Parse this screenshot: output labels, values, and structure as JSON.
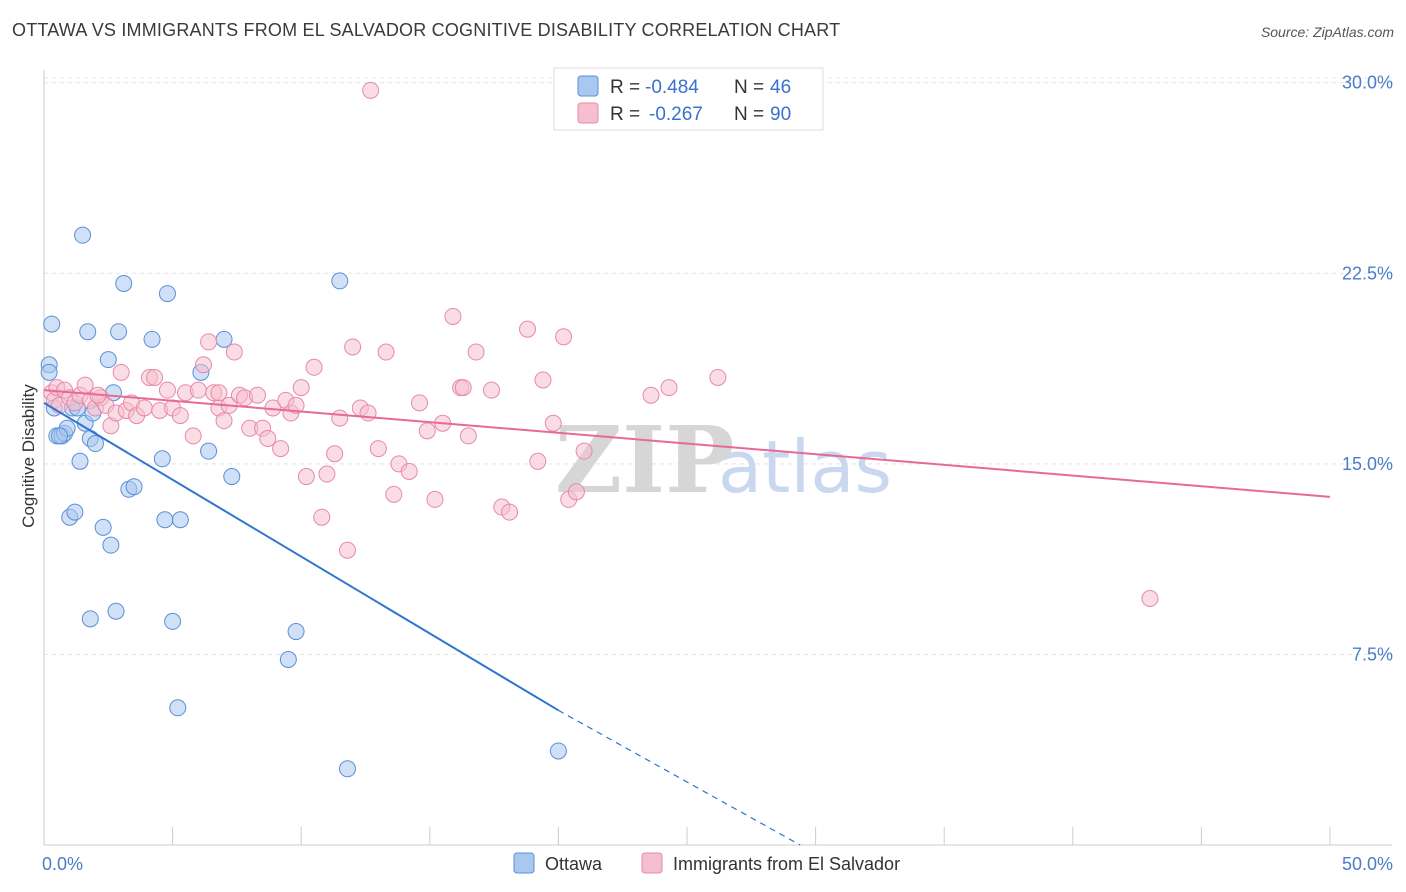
{
  "title": "OTTAWA VS IMMIGRANTS FROM EL SALVADOR COGNITIVE DISABILITY CORRELATION CHART",
  "source": "Source: ZipAtlas.com",
  "watermark": {
    "zip": "ZIP",
    "atlas": "atlas"
  },
  "legend_top": {
    "rows": [
      {
        "r_label": "R = ",
        "r_value": "-0.484",
        "n_label": "N = ",
        "n_value": "46",
        "color": "#a9c8f0",
        "stroke": "#5b8fd6"
      },
      {
        "r_label": "R = ",
        "r_value": "-0.267",
        "n_label": "N = ",
        "n_value": "90",
        "color": "#f6bfd0",
        "stroke": "#e78aa8"
      }
    ]
  },
  "legend_bottom": [
    {
      "label": "Ottawa",
      "color": "#a9c8f0",
      "stroke": "#5b8fd6"
    },
    {
      "label": "Immigrants from El Salvador",
      "color": "#f6bfd0",
      "stroke": "#e78aa8"
    }
  ],
  "chart_data": {
    "type": "scatter",
    "title": "OTTAWA VS IMMIGRANTS FROM EL SALVADOR COGNITIVE DISABILITY CORRELATION CHART",
    "xlabel": "",
    "ylabel": "Cognitive Disability",
    "xlim": [
      0,
      50
    ],
    "ylim": [
      0,
      30.5
    ],
    "x_tick_labels": [
      "0.0%",
      "50.0%"
    ],
    "y_ticks": [
      7.5,
      15.0,
      22.5,
      30.0
    ],
    "y_tick_labels": [
      "7.5%",
      "15.0%",
      "22.5%",
      "30.0%"
    ],
    "grid": true,
    "series": [
      {
        "name": "Ottawa",
        "color": "#a9c8f0",
        "stroke": "#5b8fd6",
        "line_color": "#2f74d0",
        "trend": {
          "x0": 0,
          "y0": 17.4,
          "x1": 20,
          "y1": 5.3,
          "dash_to_x": 29.4,
          "dash_to_y": 0
        },
        "points": [
          [
            0.2,
            18.9
          ],
          [
            0.2,
            18.6
          ],
          [
            0.3,
            20.5
          ],
          [
            0.4,
            17.2
          ],
          [
            0.5,
            16.1
          ],
          [
            0.7,
            16.1
          ],
          [
            0.8,
            16.2
          ],
          [
            0.9,
            16.4
          ],
          [
            1.0,
            12.9
          ],
          [
            1.1,
            17.2
          ],
          [
            1.2,
            13.1
          ],
          [
            1.4,
            15.1
          ],
          [
            1.5,
            24.0
          ],
          [
            1.6,
            16.6
          ],
          [
            1.7,
            20.2
          ],
          [
            1.8,
            8.9
          ],
          [
            1.8,
            16.0
          ],
          [
            1.9,
            17.0
          ],
          [
            2.0,
            15.8
          ],
          [
            2.3,
            12.5
          ],
          [
            2.5,
            19.1
          ],
          [
            2.6,
            11.8
          ],
          [
            2.7,
            17.8
          ],
          [
            2.8,
            9.2
          ],
          [
            2.9,
            20.2
          ],
          [
            3.1,
            22.1
          ],
          [
            3.3,
            14.0
          ],
          [
            3.5,
            14.1
          ],
          [
            4.2,
            19.9
          ],
          [
            4.6,
            15.2
          ],
          [
            4.7,
            12.8
          ],
          [
            4.8,
            21.7
          ],
          [
            5.0,
            8.8
          ],
          [
            5.2,
            5.4
          ],
          [
            5.3,
            12.8
          ],
          [
            6.1,
            18.6
          ],
          [
            6.4,
            15.5
          ],
          [
            7.0,
            19.9
          ],
          [
            7.3,
            14.5
          ],
          [
            9.5,
            7.3
          ],
          [
            9.8,
            8.4
          ],
          [
            11.5,
            22.2
          ],
          [
            11.8,
            3.0
          ],
          [
            20.0,
            3.7
          ],
          [
            0.6,
            16.1
          ],
          [
            1.3,
            17.2
          ]
        ]
      },
      {
        "name": "Immigrants from El Salvador",
        "color": "#f6bfd0",
        "stroke": "#e78aa8",
        "line_color": "#e76a96",
        "trend": {
          "x0": 0,
          "y0": 17.9,
          "x1": 50,
          "y1": 13.7
        },
        "points": [
          [
            0.3,
            17.8
          ],
          [
            0.4,
            17.5
          ],
          [
            0.5,
            18.0
          ],
          [
            0.6,
            17.3
          ],
          [
            0.8,
            17.9
          ],
          [
            1.0,
            17.6
          ],
          [
            1.2,
            17.4
          ],
          [
            1.4,
            17.7
          ],
          [
            1.6,
            18.1
          ],
          [
            1.8,
            17.5
          ],
          [
            2.0,
            17.2
          ],
          [
            2.2,
            17.6
          ],
          [
            2.4,
            17.3
          ],
          [
            2.6,
            16.5
          ],
          [
            2.8,
            17.0
          ],
          [
            3.0,
            18.6
          ],
          [
            3.2,
            17.1
          ],
          [
            3.4,
            17.4
          ],
          [
            3.6,
            16.9
          ],
          [
            3.9,
            17.2
          ],
          [
            4.1,
            18.4
          ],
          [
            4.3,
            18.4
          ],
          [
            4.5,
            17.1
          ],
          [
            4.8,
            17.9
          ],
          [
            5.0,
            17.2
          ],
          [
            5.3,
            16.9
          ],
          [
            5.5,
            17.8
          ],
          [
            5.8,
            16.1
          ],
          [
            6.0,
            17.9
          ],
          [
            6.2,
            18.9
          ],
          [
            6.4,
            19.8
          ],
          [
            6.6,
            17.8
          ],
          [
            6.8,
            17.2
          ],
          [
            7.0,
            16.7
          ],
          [
            7.2,
            17.3
          ],
          [
            7.4,
            19.4
          ],
          [
            7.6,
            17.7
          ],
          [
            7.8,
            17.6
          ],
          [
            8.0,
            16.4
          ],
          [
            8.3,
            17.7
          ],
          [
            8.5,
            16.4
          ],
          [
            8.7,
            16.0
          ],
          [
            8.9,
            17.2
          ],
          [
            9.2,
            15.6
          ],
          [
            9.4,
            17.5
          ],
          [
            9.6,
            17.0
          ],
          [
            9.8,
            17.3
          ],
          [
            10.0,
            18.0
          ],
          [
            10.2,
            14.5
          ],
          [
            10.5,
            18.8
          ],
          [
            10.8,
            12.9
          ],
          [
            11.0,
            14.6
          ],
          [
            11.3,
            15.4
          ],
          [
            11.5,
            16.8
          ],
          [
            11.8,
            11.6
          ],
          [
            12.0,
            19.6
          ],
          [
            12.3,
            17.2
          ],
          [
            12.6,
            17.0
          ],
          [
            13.0,
            15.6
          ],
          [
            13.3,
            19.4
          ],
          [
            13.6,
            13.8
          ],
          [
            13.8,
            15.0
          ],
          [
            14.2,
            14.7
          ],
          [
            14.6,
            17.4
          ],
          [
            14.9,
            16.3
          ],
          [
            15.2,
            13.6
          ],
          [
            15.5,
            16.6
          ],
          [
            15.9,
            20.8
          ],
          [
            16.2,
            18.0
          ],
          [
            16.5,
            16.1
          ],
          [
            16.8,
            19.4
          ],
          [
            17.4,
            17.9
          ],
          [
            17.8,
            13.3
          ],
          [
            18.1,
            13.1
          ],
          [
            18.8,
            20.3
          ],
          [
            19.2,
            15.1
          ],
          [
            19.4,
            18.3
          ],
          [
            19.8,
            16.6
          ],
          [
            20.2,
            20.0
          ],
          [
            20.4,
            13.6
          ],
          [
            20.7,
            13.9
          ],
          [
            21.0,
            15.5
          ],
          [
            23.6,
            17.7
          ],
          [
            24.3,
            18.0
          ],
          [
            26.2,
            18.4
          ],
          [
            12.7,
            29.7
          ],
          [
            43.0,
            9.7
          ],
          [
            6.8,
            17.8
          ],
          [
            16.3,
            18.0
          ],
          [
            2.1,
            17.7
          ]
        ]
      }
    ]
  }
}
